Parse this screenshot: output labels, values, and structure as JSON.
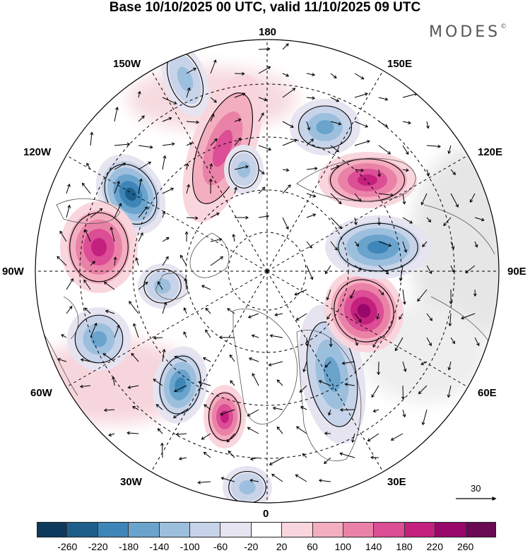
{
  "header": {
    "title": "Base 10/10/2025 00 UTC, valid 11/10/2025 09 UTC",
    "brand": "MODES",
    "brand_mark": "©"
  },
  "map": {
    "projection": "north polar stereographic",
    "longitude_labels": {
      "lon_180": "180",
      "lon_150w": "150W",
      "lon_150e": "150E",
      "lon_120w": "120W",
      "lon_120e": "120E",
      "lon_90w": "90W",
      "lon_90e": "90E",
      "lon_60w": "60W",
      "lon_60e": "60E",
      "lon_30w": "30W",
      "lon_30e": "30E",
      "lon_0": "0"
    },
    "field_centers": [
      {
        "name": "low-150W",
        "sign": "negative",
        "intensity": -100
      },
      {
        "name": "low-130W",
        "sign": "negative",
        "intensity": -220
      },
      {
        "name": "high-105W",
        "sign": "positive",
        "intensity": 180
      },
      {
        "name": "low-90W",
        "sign": "negative",
        "intensity": -100
      },
      {
        "name": "low-75W",
        "sign": "negative",
        "intensity": -140
      },
      {
        "name": "low-45W",
        "sign": "negative",
        "intensity": -180
      },
      {
        "name": "high-15W",
        "sign": "positive",
        "intensity": 180
      },
      {
        "name": "low-10E",
        "sign": "negative",
        "intensity": -100
      },
      {
        "name": "low-25E",
        "sign": "negative",
        "intensity": -140
      },
      {
        "name": "high-75E",
        "sign": "positive",
        "intensity": 220
      },
      {
        "name": "low-95E",
        "sign": "negative",
        "intensity": -180
      },
      {
        "name": "high-120E",
        "sign": "positive",
        "intensity": 180
      },
      {
        "name": "low-155E",
        "sign": "negative",
        "intensity": -140
      },
      {
        "name": "high-165W",
        "sign": "positive",
        "intensity": 140
      },
      {
        "name": "low-170E",
        "sign": "negative",
        "intensity": -100
      }
    ]
  },
  "reference_vector": {
    "value": "30"
  },
  "colorbar": {
    "colors": [
      "#0d3a5c",
      "#1d5f8a",
      "#3f86b8",
      "#6aa4cd",
      "#9dbfde",
      "#c7d3e8",
      "#e6e4f0",
      "#ffffff",
      "#f9d6dd",
      "#f3aebf",
      "#ea82a8",
      "#dc4e95",
      "#c4207e",
      "#98086a",
      "#6a0a55"
    ],
    "tick_labels": [
      "-260",
      "-220",
      "-180",
      "-140",
      "-100",
      "-60",
      "-20",
      "20",
      "60",
      "100",
      "140",
      "180",
      "220",
      "260"
    ]
  }
}
